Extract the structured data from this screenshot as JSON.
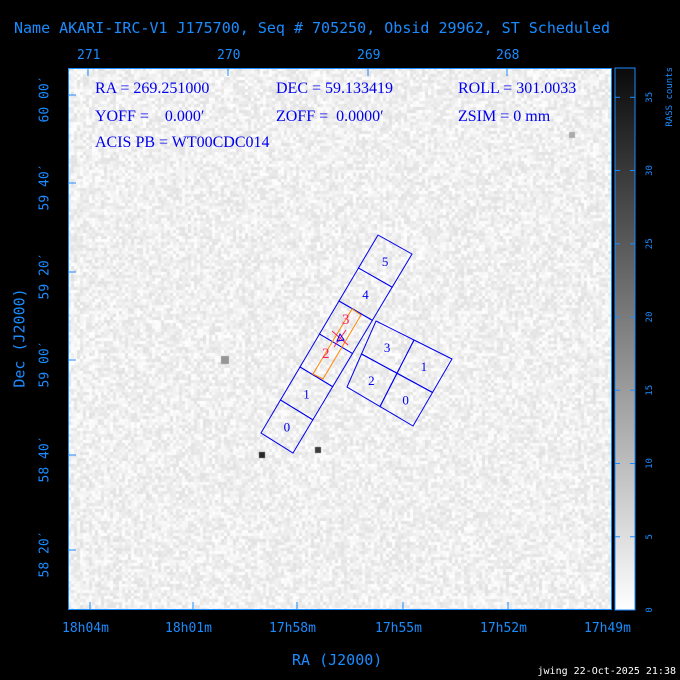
{
  "title": "Name AKARI-IRC-V1 J175700, Seq # 705250, Obsid 29962, ST Scheduled",
  "info": {
    "ra": "RA = 269.251000",
    "dec": "DEC = 59.133419",
    "roll": "ROLL = 301.0033",
    "yoff": "YOFF =    0.000′",
    "zoff": "ZOFF =  0.0000′",
    "zsim": "ZSIM = 0 mm",
    "acis_pb": "ACIS PB = WT00CDC014"
  },
  "footer": "jwing 22-Oct-2025 21:38",
  "colors": {
    "axis": "#1a8cff",
    "chips": "#0000ee",
    "aperture": "#ff8800",
    "marker": "#ff2060"
  },
  "chart_data": {
    "type": "heatmap",
    "xlabel": "RA (J2000)",
    "ylabel": "Dec (J2000)",
    "x_ticks_bottom": [
      "18h04m",
      "18h01m",
      "17h58m",
      "17h55m",
      "17h52m",
      "17h49m"
    ],
    "x_ticks_top": [
      "271",
      "270",
      "269",
      "268"
    ],
    "y_ticks": [
      "60 00′",
      "59 40′",
      "59 20′",
      "59 00′",
      "58 40′",
      "58 20′"
    ],
    "colorbar": {
      "label": "RASS counts",
      "ticks": [
        "0",
        "5",
        "10",
        "15",
        "20",
        "25",
        "30",
        "35"
      ],
      "range": [
        0,
        37
      ]
    },
    "chips": {
      "acis_s": [
        "0",
        "1",
        "2",
        "3",
        "4",
        "5"
      ],
      "acis_i": [
        "0",
        "1",
        "2",
        "3"
      ],
      "aperture_labels": [
        "2",
        "3"
      ]
    }
  }
}
